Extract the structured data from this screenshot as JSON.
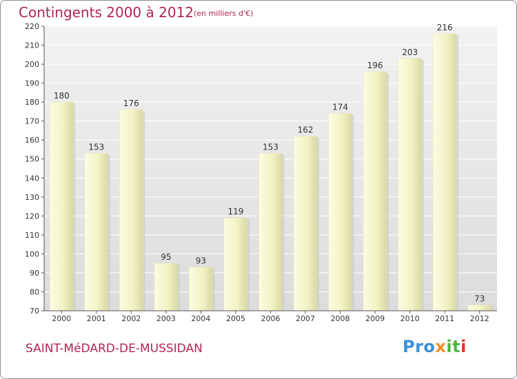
{
  "header": {
    "title": "Contingents 2000 à 2012",
    "subtitle": "(en milliers d'€)"
  },
  "footer": {
    "commune": "SAINT-MéDARD-DE-MUSSIDAN",
    "logo": "Proxiti"
  },
  "colors": {
    "title": "#b0264f",
    "bar_light": "#fbfbdc",
    "bar_dark": "#dedeaa",
    "plot_background": "#e9e9e9"
  },
  "chart_data": {
    "type": "bar",
    "title": "Contingents 2000 à 2012",
    "subtitle": "(en milliers d'€)",
    "categories": [
      "2000",
      "2001",
      "2002",
      "2003",
      "2004",
      "2005",
      "2006",
      "2007",
      "2008",
      "2009",
      "2010",
      "2011",
      "2012"
    ],
    "values": [
      180,
      153,
      176,
      95,
      93,
      119,
      153,
      162,
      174,
      196,
      203,
      216,
      73
    ],
    "ylim": [
      70,
      220
    ],
    "yticks": [
      70,
      80,
      90,
      100,
      110,
      120,
      130,
      140,
      150,
      160,
      170,
      180,
      190,
      200,
      210,
      220
    ],
    "grid": true,
    "legend": "none"
  }
}
